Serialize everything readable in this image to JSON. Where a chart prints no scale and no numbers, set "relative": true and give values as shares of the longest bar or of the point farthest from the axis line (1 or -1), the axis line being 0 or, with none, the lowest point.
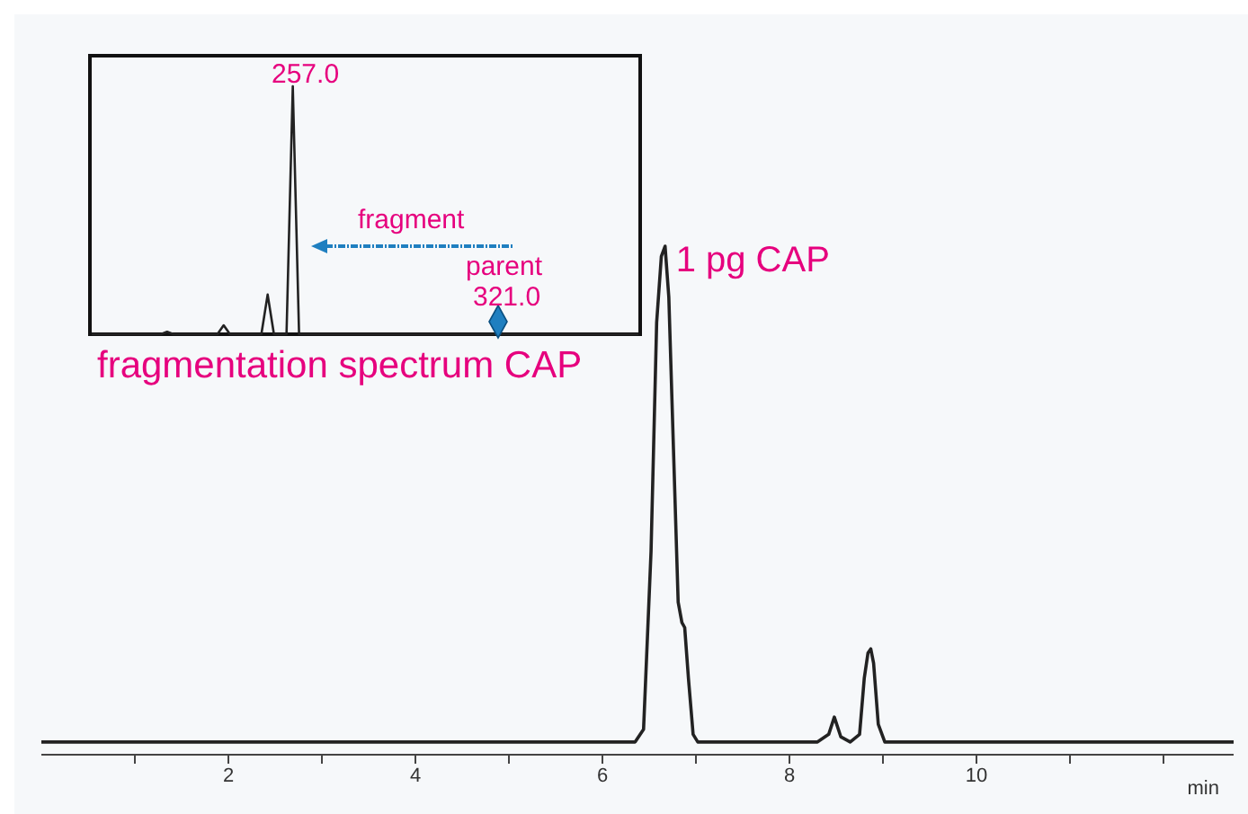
{
  "chart_data": [
    {
      "type": "line",
      "xlabel": "min",
      "relative": true,
      "tick_labels": "x",
      "xlim": [
        0,
        12.75
      ],
      "xticks": [
        {
          "value": 1,
          "label": null
        },
        2,
        {
          "value": 3,
          "label": null
        },
        4,
        {
          "value": 5,
          "label": null
        },
        6,
        {
          "value": 7,
          "label": null
        },
        8,
        {
          "value": 9,
          "label": null
        },
        10,
        {
          "value": 11,
          "label": null
        },
        {
          "value": 12,
          "label": null
        }
      ],
      "color": "#222222",
      "x": [
        0,
        6.35,
        6.44,
        6.52,
        6.58,
        6.63,
        6.67,
        6.71,
        6.76,
        6.81,
        6.85,
        6.88,
        6.92,
        6.97,
        7.02,
        7.1,
        8.3,
        8.42,
        8.48,
        8.55,
        8.65,
        8.75,
        8.8,
        8.84,
        8.87,
        8.9,
        8.95,
        9.02,
        9.1,
        12.75
      ],
      "values": [
        0.025,
        0.025,
        0.05,
        0.4,
        0.85,
        0.98,
        1,
        0.9,
        0.6,
        0.3,
        0.26,
        0.25,
        0.15,
        0.04,
        0.025,
        0.025,
        0.025,
        0.04,
        0.074,
        0.035,
        0.025,
        0.04,
        0.15,
        0.2,
        0.208,
        0.18,
        0.06,
        0.025,
        0.025,
        0.025
      ],
      "annotations": [
        {
          "text": "1 pg CAP",
          "x": 6.67,
          "y": 1
        }
      ]
    },
    {
      "type": "line",
      "xlabel": "fragmentation spectrum CAP",
      "relative": true,
      "tick_labels": false,
      "color": "#222222",
      "categories": [
        null,
        null,
        null,
        null,
        null,
        null,
        null,
        null,
        null,
        null,
        null,
        null,
        null,
        null,
        null,
        null,
        null,
        null,
        null,
        null,
        null,
        null,
        null,
        null,
        null,
        null,
        null,
        null,
        null,
        null,
        null,
        null,
        null,
        null,
        null,
        null,
        null,
        null,
        null,
        null,
        null,
        null,
        null,
        null,
        null,
        null,
        null,
        null,
        null,
        null,
        null,
        null,
        null,
        null,
        null,
        null,
        null,
        null,
        null,
        null,
        null,
        null,
        null,
        null,
        null,
        null,
        null,
        null,
        null,
        null,
        null,
        null,
        null,
        null,
        null,
        null,
        null,
        null,
        null,
        null,
        null,
        null,
        null,
        null,
        null,
        null,
        null,
        null
      ],
      "values": [
        0,
        0,
        0,
        0,
        0,
        0,
        0,
        0,
        0,
        0,
        0,
        0,
        0.01,
        0,
        0,
        0,
        0,
        0,
        0,
        0,
        0,
        0.036,
        0,
        0,
        0,
        0,
        0,
        0,
        0.16,
        0,
        0,
        0,
        1,
        0,
        0,
        0,
        0,
        0,
        0,
        0,
        0,
        0,
        0,
        0,
        0,
        0,
        0,
        0,
        0,
        0,
        0,
        0,
        0,
        0,
        0,
        0,
        0,
        0,
        0,
        0,
        0,
        0,
        0,
        0,
        0,
        0,
        0,
        0,
        0,
        0,
        0,
        0,
        0,
        0,
        0,
        0,
        0,
        0,
        0,
        0,
        0,
        0,
        0,
        0,
        0,
        0,
        0,
        0
      ],
      "annotations": [
        "257.0",
        "fragment",
        "parent",
        "321.0"
      ]
    }
  ]
}
